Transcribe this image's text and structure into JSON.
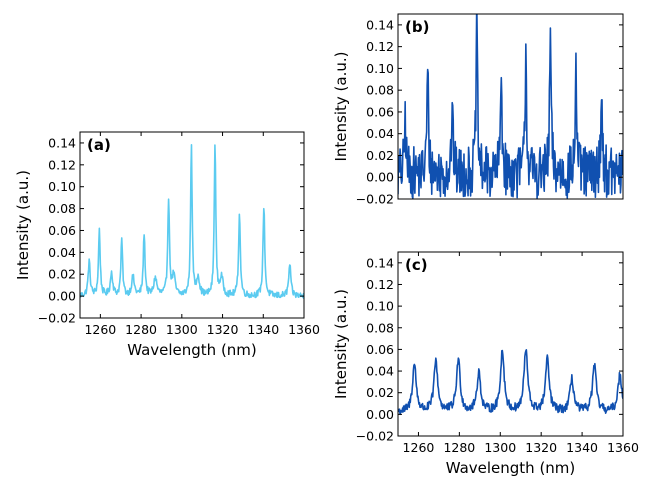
{
  "figure": {
    "xlabel": "Wavelength (nm)",
    "ylabel": "Intensity (a.u.)"
  },
  "chart_data": [
    {
      "id": "a",
      "type": "line",
      "panel_label": "(a)",
      "color": "#5bcbf0",
      "xlabel": "Wavelength (nm)",
      "ylabel": "Intensity (a.u.)",
      "xlim": [
        1250,
        1360
      ],
      "ylim": [
        -0.02,
        0.15
      ],
      "xticks": [
        1260,
        1280,
        1300,
        1320,
        1340,
        1360
      ],
      "xtick_labels": [
        "1260",
        "1280",
        "1300",
        "1320",
        "1340",
        "1360"
      ],
      "yticks": [
        -0.02,
        0.0,
        0.02,
        0.04,
        0.06,
        0.08,
        0.1,
        0.12,
        0.14
      ],
      "ytick_labels": [
        "−0.02",
        "0.00",
        "0.02",
        "0.04",
        "0.06",
        "0.08",
        "0.10",
        "0.12",
        "0.14"
      ],
      "baseline": 0.0,
      "noise": 0.003,
      "peaks": [
        {
          "x": 1254.5,
          "y": 0.031,
          "w": 0.6
        },
        {
          "x": 1259.5,
          "y": 0.06,
          "w": 0.5
        },
        {
          "x": 1265.5,
          "y": 0.021,
          "w": 0.7
        },
        {
          "x": 1270.5,
          "y": 0.051,
          "w": 0.5
        },
        {
          "x": 1276.0,
          "y": 0.017,
          "w": 0.8
        },
        {
          "x": 1281.5,
          "y": 0.057,
          "w": 0.5
        },
        {
          "x": 1287.0,
          "y": 0.016,
          "w": 0.9
        },
        {
          "x": 1293.5,
          "y": 0.089,
          "w": 0.5
        },
        {
          "x": 1296.0,
          "y": 0.018,
          "w": 0.8
        },
        {
          "x": 1304.7,
          "y": 0.14,
          "w": 0.45
        },
        {
          "x": 1308.0,
          "y": 0.017,
          "w": 0.8
        },
        {
          "x": 1316.3,
          "y": 0.141,
          "w": 0.45
        },
        {
          "x": 1319.5,
          "y": 0.016,
          "w": 0.9
        },
        {
          "x": 1328.3,
          "y": 0.076,
          "w": 0.5
        },
        {
          "x": 1340.3,
          "y": 0.083,
          "w": 0.5
        },
        {
          "x": 1353.0,
          "y": 0.029,
          "w": 0.6
        }
      ]
    },
    {
      "id": "b",
      "type": "line",
      "panel_label": "(b)",
      "color": "#1050b0",
      "xlabel": "",
      "ylabel": "Intensity (a.u.)",
      "xlim": [
        1250,
        1360
      ],
      "ylim": [
        -0.02,
        0.15
      ],
      "xticks": [],
      "xtick_labels": [],
      "yticks": [
        -0.02,
        0.0,
        0.02,
        0.04,
        0.06,
        0.08,
        0.1,
        0.12,
        0.14
      ],
      "ytick_labels": [
        "−0.02",
        "0.00",
        "0.02",
        "0.04",
        "0.06",
        "0.08",
        "0.10",
        "0.12",
        "0.14"
      ],
      "baseline": 0.003,
      "noise": 0.024,
      "peaks": [
        {
          "x": 1253.5,
          "y": 0.053,
          "w": 0.45
        },
        {
          "x": 1264.5,
          "y": 0.098,
          "w": 0.45
        },
        {
          "x": 1276.5,
          "y": 0.058,
          "w": 0.5
        },
        {
          "x": 1288.5,
          "y": 0.139,
          "w": 0.45
        },
        {
          "x": 1300.5,
          "y": 0.095,
          "w": 0.45
        },
        {
          "x": 1312.5,
          "y": 0.117,
          "w": 0.45
        },
        {
          "x": 1324.5,
          "y": 0.128,
          "w": 0.45
        },
        {
          "x": 1337.0,
          "y": 0.098,
          "w": 0.45
        },
        {
          "x": 1349.5,
          "y": 0.079,
          "w": 0.45
        }
      ]
    },
    {
      "id": "c",
      "type": "line",
      "panel_label": "(c)",
      "color": "#1050b0",
      "xlabel": "Wavelength (nm)",
      "ylabel": "Intensity (a.u.)",
      "xlim": [
        1250,
        1360
      ],
      "ylim": [
        -0.02,
        0.15
      ],
      "xticks": [
        1260,
        1280,
        1300,
        1320,
        1340,
        1360
      ],
      "xtick_labels": [
        "1260",
        "1280",
        "1300",
        "1320",
        "1340",
        "1360"
      ],
      "yticks": [
        -0.02,
        0.0,
        0.02,
        0.04,
        0.06,
        0.08,
        0.1,
        0.12,
        0.14
      ],
      "ytick_labels": [
        "−0.02",
        "0.00",
        "0.02",
        "0.04",
        "0.06",
        "0.08",
        "0.10",
        "0.12",
        "0.14"
      ],
      "baseline": 0.002,
      "noise": 0.004,
      "peaks": [
        {
          "x": 1258.0,
          "y": 0.046,
          "w": 1.1
        },
        {
          "x": 1268.5,
          "y": 0.049,
          "w": 1.1
        },
        {
          "x": 1279.5,
          "y": 0.05,
          "w": 1.1
        },
        {
          "x": 1289.5,
          "y": 0.038,
          "w": 1.1
        },
        {
          "x": 1301.0,
          "y": 0.058,
          "w": 1.1
        },
        {
          "x": 1312.5,
          "y": 0.059,
          "w": 1.1
        },
        {
          "x": 1323.0,
          "y": 0.05,
          "w": 1.1
        },
        {
          "x": 1335.0,
          "y": 0.032,
          "w": 1.1
        },
        {
          "x": 1346.0,
          "y": 0.045,
          "w": 1.1
        },
        {
          "x": 1358.5,
          "y": 0.036,
          "w": 1.2
        }
      ]
    }
  ]
}
